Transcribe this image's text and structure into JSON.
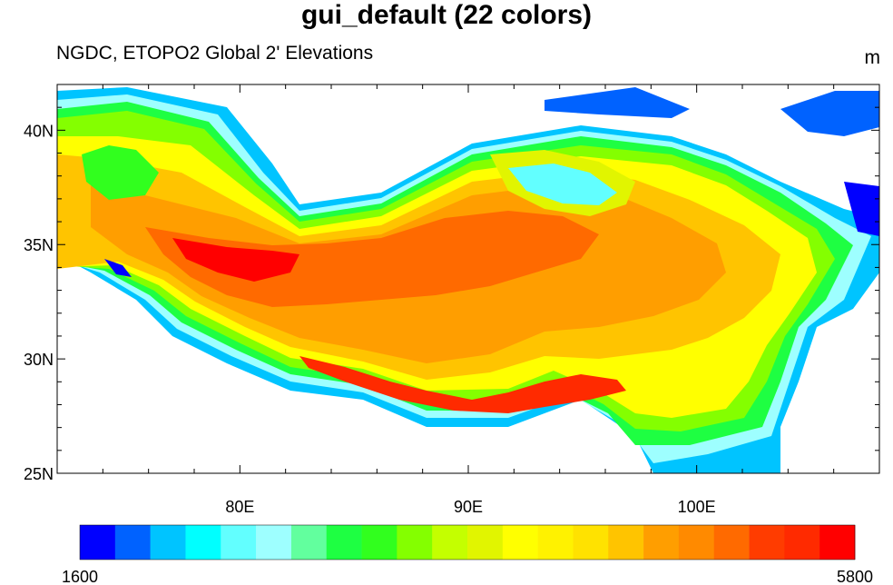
{
  "title": "gui_default (22 colors)",
  "subtitle": "NGDC, ETOPO2 Global 2' Elevations",
  "units": "m",
  "chart_data": {
    "type": "heatmap",
    "title": "gui_default (22 colors)",
    "subtitle": "NGDC, ETOPO2 Global 2' Elevations",
    "units": "m",
    "colormap": "gui_default",
    "n_colors": 22,
    "xlim": [
      72,
      108
    ],
    "ylim": [
      25,
      42
    ],
    "x_ticks": [
      80,
      90,
      100
    ],
    "x_tick_labels": [
      "80E",
      "90E",
      "100E"
    ],
    "y_ticks": [
      25,
      30,
      35,
      40
    ],
    "y_tick_labels": [
      "25N",
      "30N",
      "35N",
      "40N"
    ],
    "colorbar": {
      "min": 1600,
      "max": 5800,
      "min_label": "1600",
      "max_label": "5800",
      "colors": [
        "#0000ff",
        "#0062ff",
        "#00c4ff",
        "#00ffff",
        "#62ffff",
        "#9effff",
        "#62ff9e",
        "#1eff42",
        "#31ff1e",
        "#84ff00",
        "#c4ff00",
        "#e1f500",
        "#ffff00",
        "#fff200",
        "#ffe200",
        "#ffc400",
        "#ff9e00",
        "#ff8a00",
        "#ff6a00",
        "#ff3c00",
        "#ff2a00",
        "#ff0000"
      ]
    },
    "missing_color": "#ffffff"
  }
}
